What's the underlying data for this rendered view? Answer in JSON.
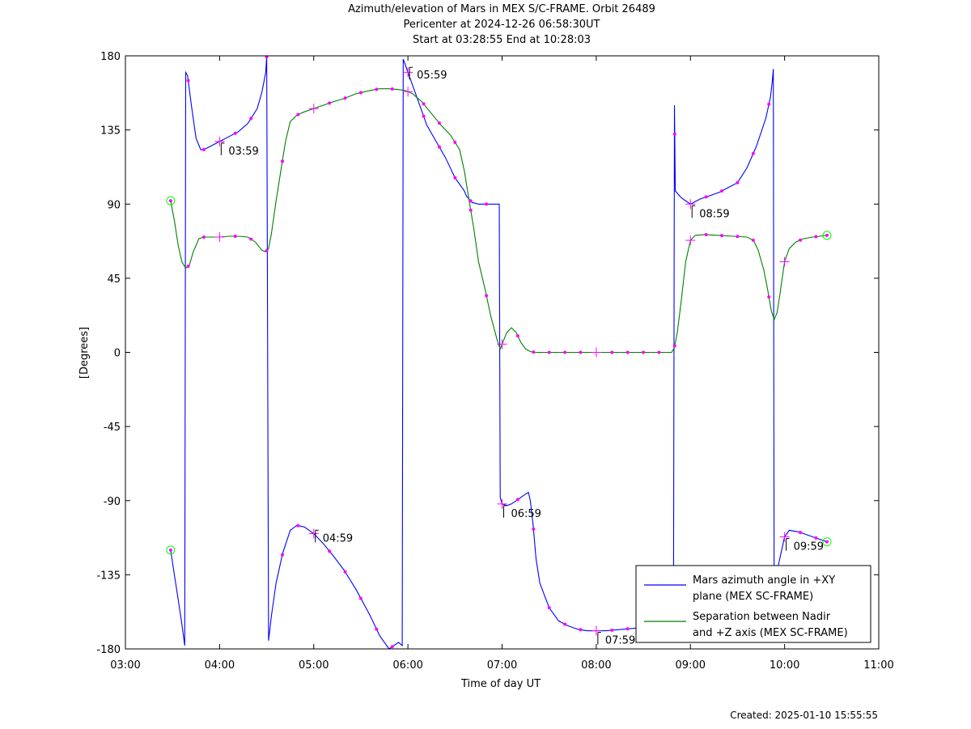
{
  "chart_data": {
    "type": "line",
    "title_lines": [
      "Azimuth/elevation of Mars in MEX S/C-FRAME.  Orbit 26489",
      "Pericenter at 2024-12-26 06:58:30UT",
      "Start at 03:28:55 End at 10:28:03"
    ],
    "xlabel": "Time of day UT",
    "ylabel": "[Degrees]",
    "xlim": [
      3.0,
      11.0
    ],
    "ylim": [
      -180,
      180
    ],
    "x_ticks": [
      3,
      4,
      5,
      6,
      7,
      8,
      9,
      10,
      11
    ],
    "x_tick_labels": [
      "03:00",
      "04:00",
      "05:00",
      "06:00",
      "07:00",
      "08:00",
      "09:00",
      "10:00",
      "11:00"
    ],
    "y_ticks": [
      180,
      135,
      90,
      45,
      0,
      -45,
      -90,
      -135,
      -180
    ],
    "y_tick_labels": [
      "180",
      "135",
      "90",
      "45",
      "0",
      "-45",
      "-90",
      "-135",
      "-180"
    ],
    "legend_position": "bottom-right",
    "series": [
      {
        "name": "Mars azimuth angle in +XY plane (MEX SC-FRAME)",
        "legend_lines": [
          "Mars azimuth angle in +XY",
          "plane (MEX SC-FRAME)"
        ],
        "color": "#0000ff",
        "x": [
          3.48,
          3.52,
          3.56,
          3.6,
          3.63,
          3.64,
          3.66,
          3.7,
          3.75,
          3.8,
          3.83,
          3.9,
          4.0,
          4.1,
          4.2,
          4.3,
          4.4,
          4.45,
          4.49,
          4.5,
          4.52,
          4.55,
          4.6,
          4.67,
          4.75,
          4.82,
          4.9,
          5.0,
          5.1,
          5.2,
          5.32,
          5.45,
          5.6,
          5.7,
          5.8,
          5.85,
          5.9,
          5.94,
          5.95,
          5.97,
          6.0,
          6.1,
          6.2,
          6.3,
          6.4,
          6.5,
          6.6,
          6.62,
          6.68,
          6.75,
          6.82,
          6.97,
          6.98,
          7.0,
          7.05,
          7.1,
          7.15,
          7.2,
          7.25,
          7.28,
          7.3,
          7.33,
          7.36,
          7.4,
          7.5,
          7.6,
          7.7,
          7.8,
          7.9,
          8.0,
          8.1,
          8.3,
          8.5,
          8.82,
          8.83,
          8.84,
          8.9,
          9.0,
          9.1,
          9.2,
          9.3,
          9.4,
          9.5,
          9.6,
          9.7,
          9.8,
          9.85,
          9.87,
          9.88,
          9.89,
          9.9,
          9.91,
          9.92,
          9.95,
          10.0,
          10.05,
          10.15,
          10.25,
          10.35,
          10.45
        ],
        "y": [
          -120,
          -135,
          -150,
          -165,
          -178,
          170,
          168,
          150,
          130,
          123,
          123,
          125,
          128,
          131,
          134,
          139,
          148,
          158,
          170,
          180,
          -175,
          -160,
          -140,
          -122,
          -108,
          -105,
          -106,
          -110,
          -116,
          -123,
          -132,
          -144,
          -160,
          -172,
          -180,
          -178,
          -176,
          -178,
          178,
          175,
          170,
          154,
          138,
          128,
          118,
          106,
          98,
          95,
          91,
          90,
          90,
          90,
          -88,
          -92,
          -93,
          -92,
          -90,
          -88,
          -86,
          -85,
          -90,
          -105,
          -125,
          -140,
          -155,
          -163,
          -166,
          -168,
          -169,
          -169,
          -169,
          -168,
          -167,
          -166,
          150,
          98,
          94,
          90,
          93,
          95,
          97,
          100,
          103,
          112,
          125,
          142,
          155,
          165,
          172,
          -170,
          -155,
          -140,
          -133,
          -125,
          -112,
          -108,
          -109,
          -111,
          -113,
          -115
        ]
      },
      {
        "name": "Separation between Nadir and +Z axis (MEX SC-FRAME)",
        "legend_lines": [
          "Separation between Nadir",
          "and +Z axis (MEX SC-FRAME)"
        ],
        "color": "#007f00",
        "x": [
          3.48,
          3.52,
          3.56,
          3.6,
          3.64,
          3.68,
          3.72,
          3.78,
          3.83,
          3.9,
          4.0,
          4.1,
          4.2,
          4.3,
          4.38,
          4.45,
          4.49,
          4.52,
          4.55,
          4.6,
          4.65,
          4.7,
          4.75,
          4.82,
          4.9,
          5.0,
          5.1,
          5.2,
          5.32,
          5.45,
          5.6,
          5.7,
          5.8,
          5.9,
          5.97,
          6.05,
          6.15,
          6.25,
          6.35,
          6.45,
          6.55,
          6.6,
          6.65,
          6.7,
          6.75,
          6.82,
          6.88,
          6.95,
          6.98,
          7.0,
          7.05,
          7.1,
          7.15,
          7.2,
          7.25,
          7.3,
          7.35,
          7.4,
          7.5,
          7.7,
          8.0,
          8.3,
          8.6,
          8.8,
          8.83,
          8.86,
          8.9,
          8.95,
          9.0,
          9.05,
          9.15,
          9.3,
          9.45,
          9.6,
          9.67,
          9.72,
          9.78,
          9.82,
          9.86,
          9.89,
          9.92,
          9.95,
          10.0,
          10.05,
          10.12,
          10.2,
          10.3,
          10.45
        ],
        "y": [
          92,
          80,
          65,
          55,
          51,
          53,
          61,
          69,
          70,
          70,
          70,
          70.5,
          70.5,
          70,
          67,
          62,
          61,
          63,
          72,
          92,
          110,
          128,
          140,
          144,
          146,
          148,
          150,
          152,
          154,
          157,
          159,
          160,
          160,
          159.5,
          159,
          157,
          152,
          145,
          138,
          132,
          123,
          110,
          92,
          75,
          55,
          38,
          22,
          7,
          2,
          5,
          12,
          15,
          12,
          6,
          2,
          0.5,
          0,
          0,
          0,
          0,
          0,
          0,
          0,
          0,
          3,
          12,
          30,
          55,
          68,
          71,
          71.5,
          71,
          70.5,
          70,
          68,
          62,
          50,
          38,
          25,
          20,
          24,
          35,
          55,
          63,
          67,
          69,
          70,
          71
        ]
      }
    ],
    "hour_labels": [
      {
        "label": "03:59",
        "x": 4.017,
        "y": 128
      },
      {
        "label": "04:59",
        "x": 5.017,
        "y": -107
      },
      {
        "label": "05:59",
        "x": 6.017,
        "y": 174
      },
      {
        "label": "06:59",
        "x": 7.017,
        "y": -92
      },
      {
        "label": "07:59",
        "x": 8.017,
        "y": -169
      },
      {
        "label": "08:59",
        "x": 9.017,
        "y": 90
      },
      {
        "label": "09:59",
        "x": 10.017,
        "y": -112
      }
    ],
    "marker_color": "#ff00ff",
    "start_end_marker_color": "#00ff00",
    "created": "Created: 2025-01-10 15:55:55"
  }
}
